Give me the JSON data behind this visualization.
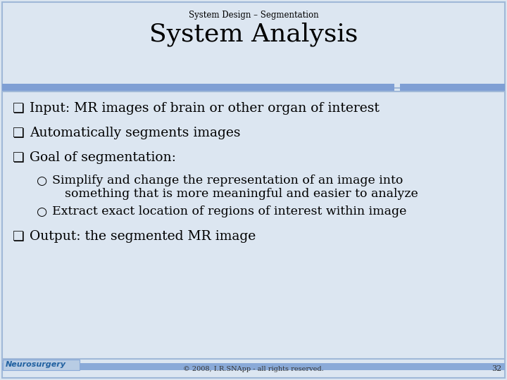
{
  "bg_color": "#dce6f1",
  "subtitle": "System Design – Segmentation",
  "title": "System Analysis",
  "subtitle_fontsize": 8.5,
  "title_fontsize": 26,
  "divider_color": "#7f9fd4",
  "footer_text": "© 2008, I.R.SNApp - all rights reserved.",
  "footer_page": "32",
  "neurosurgery_text": "Neurosurgery",
  "footer_bar_color": "#8aaad8",
  "neurosurgery_color": "#2060a0",
  "border_color": "#a0b8d8",
  "bullet1": "Input: MR images of brain or other organ of interest",
  "bullet2": "Automatically segments images",
  "bullet3": "Goal of segmentation:",
  "sub1a": "Simplify and change the representation of an image into",
  "sub1b": "something that is more meaningful and easier to analyze",
  "sub2": "Extract exact location of regions of interest within image",
  "bullet4": "Output: the segmented MR image"
}
